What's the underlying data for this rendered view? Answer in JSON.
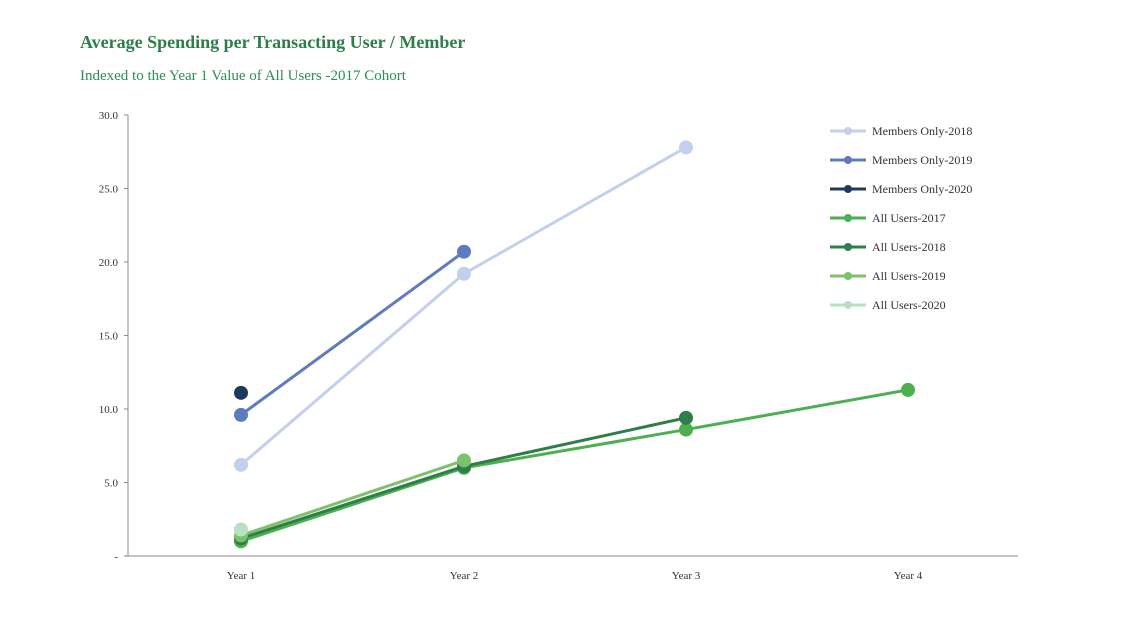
{
  "title": "Average Spending per Transacting User / Member",
  "subtitle": "Indexed to the Year 1 Value of All Users -2017 Cohort",
  "chart_data": {
    "type": "line",
    "categories": [
      "Year 1",
      "Year 2",
      "Year 3",
      "Year 4"
    ],
    "ylim": [
      0,
      30
    ],
    "yticks": [
      0,
      5,
      10,
      15,
      20,
      25,
      30
    ],
    "ytick_labels": [
      "-",
      "5.0",
      "10.0",
      "15.0",
      "20.0",
      "25.0",
      "30.0"
    ],
    "grid": false,
    "legend_position": "top-right",
    "series": [
      {
        "name": "Members Only-2018",
        "color": "#c3cfec",
        "values": [
          6.2,
          19.2,
          27.8,
          null
        ]
      },
      {
        "name": "Members Only-2019",
        "color": "#5e7bbf",
        "values": [
          9.6,
          20.7,
          null,
          null
        ]
      },
      {
        "name": "Members Only-2020",
        "color": "#1f3a5f",
        "values": [
          11.1,
          null,
          null,
          null
        ]
      },
      {
        "name": "All Users-2017",
        "color": "#4caf50",
        "values": [
          1.0,
          6.0,
          8.6,
          11.3
        ]
      },
      {
        "name": "All Users-2018",
        "color": "#2e7d4a",
        "values": [
          1.2,
          6.1,
          9.4,
          null
        ]
      },
      {
        "name": "All Users-2019",
        "color": "#7cc26b",
        "values": [
          1.4,
          6.5,
          null,
          null
        ]
      },
      {
        "name": "All Users-2020",
        "color": "#b8e0c2",
        "values": [
          1.8,
          null,
          null,
          null
        ]
      }
    ]
  }
}
